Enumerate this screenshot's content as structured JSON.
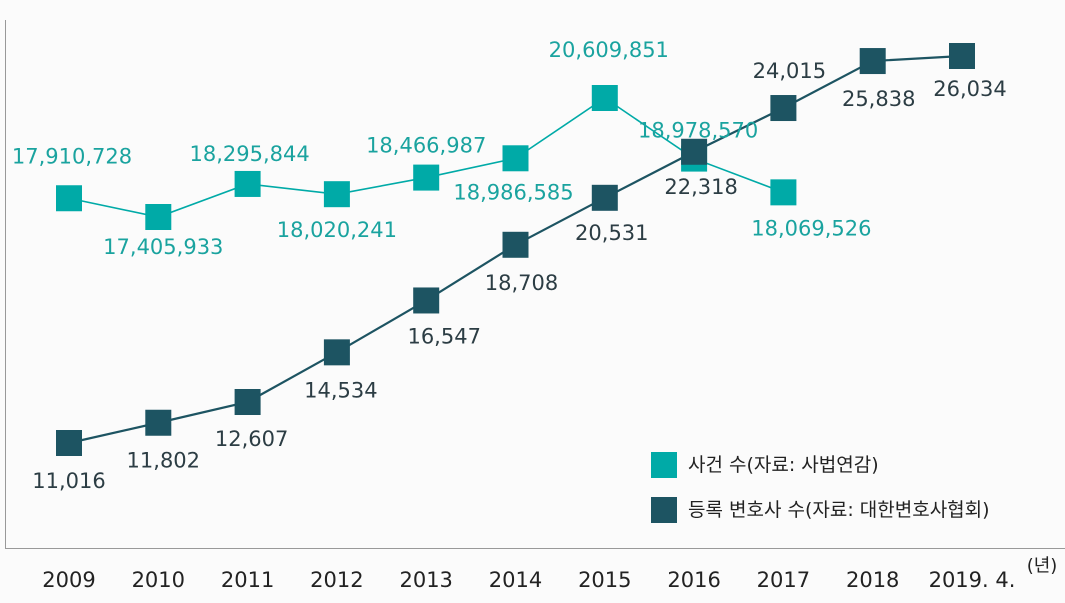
{
  "chart_data": {
    "type": "line",
    "title": "",
    "xlabel": "",
    "x_unit": "(년)",
    "ylabel": "",
    "categories": [
      "2009",
      "2010",
      "2011",
      "2012",
      "2013",
      "2014",
      "2015",
      "2016",
      "2017",
      "2018",
      "2019. 4."
    ],
    "grid": false,
    "legend_position": "bottom-right",
    "series": [
      {
        "name": "사건 수(자료: 사법연감)",
        "color": "#00aaa7",
        "values": [
          17910728,
          17405933,
          18295844,
          18020241,
          18466987,
          18986585,
          20609851,
          18978570,
          18069526,
          null,
          null
        ],
        "labels": [
          "17,910,728",
          "17,405,933",
          "18,295,844",
          "18,020,241",
          "18,466,987",
          "18,986,585",
          "20,609,851",
          "18,978,570",
          "18,069,526",
          null,
          null
        ]
      },
      {
        "name": "등록 변호사 수(자료: 대한변호사협회)",
        "color": "#1d5462",
        "values": [
          11016,
          11802,
          12607,
          14534,
          16547,
          18708,
          20531,
          22318,
          24015,
          25838,
          26034
        ],
        "labels": [
          "11,016",
          "11,802",
          "12,607",
          "14,534",
          "16,547",
          "18,708",
          "20,531",
          "22,318",
          "24,015",
          "25,838",
          "26,034"
        ]
      }
    ]
  }
}
